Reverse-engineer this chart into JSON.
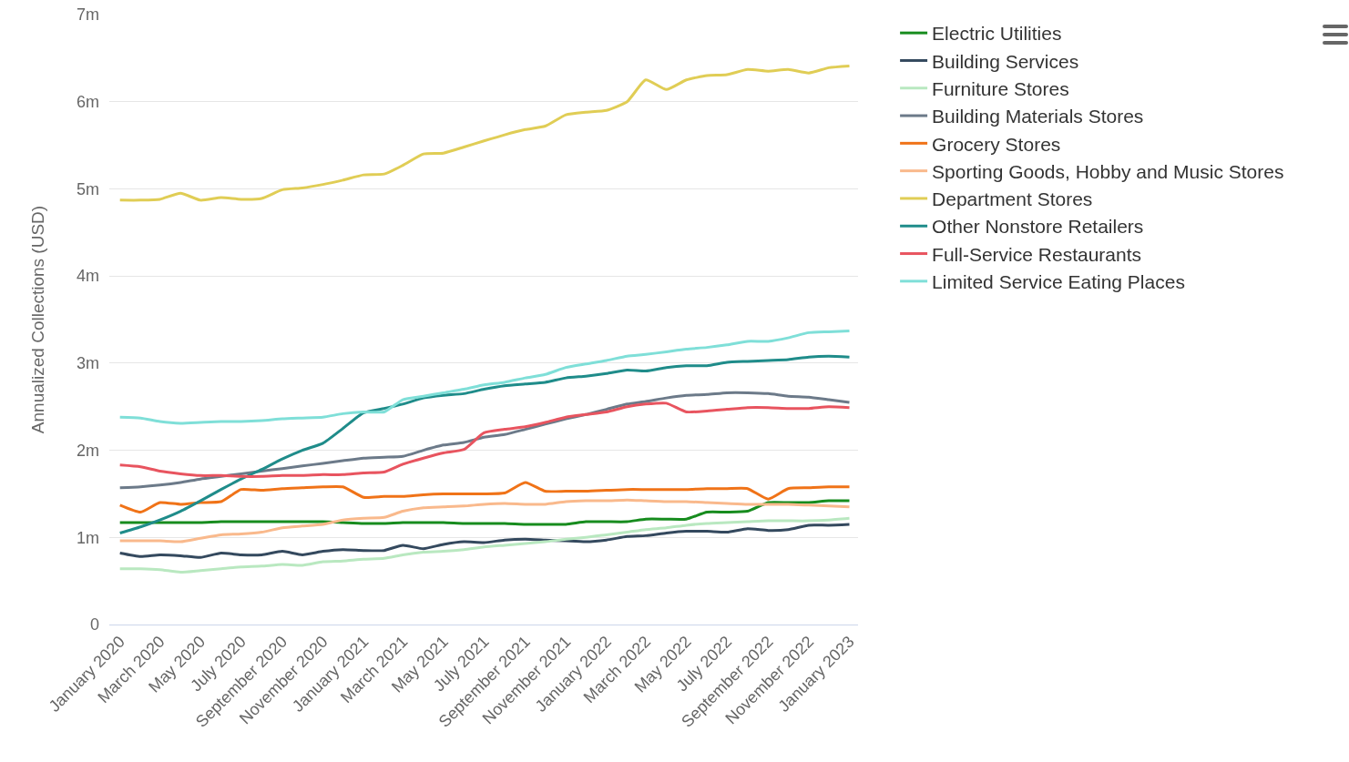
{
  "chart_data": {
    "type": "line",
    "ylabel": "Annualized Collections (USD)",
    "x": [
      "2020-01",
      "2020-02",
      "2020-03",
      "2020-04",
      "2020-05",
      "2020-06",
      "2020-07",
      "2020-08",
      "2020-09",
      "2020-10",
      "2020-11",
      "2020-12",
      "2021-01",
      "2021-02",
      "2021-03",
      "2021-04",
      "2021-05",
      "2021-06",
      "2021-07",
      "2021-08",
      "2021-09",
      "2021-10",
      "2021-11",
      "2021-12",
      "2022-01",
      "2022-02",
      "2022-03",
      "2022-04",
      "2022-05",
      "2022-06",
      "2022-07",
      "2022-08",
      "2022-09",
      "2022-10",
      "2022-11",
      "2022-12",
      "2023-01"
    ],
    "xlim": [
      "2019-12-16",
      "2023-01-14"
    ],
    "xticks": [
      {
        "value": "2020-01",
        "label": "January 2020"
      },
      {
        "value": "2020-03",
        "label": "March 2020"
      },
      {
        "value": "2020-05",
        "label": "May 2020"
      },
      {
        "value": "2020-07",
        "label": "July 2020"
      },
      {
        "value": "2020-09",
        "label": "September 2020"
      },
      {
        "value": "2020-11",
        "label": "November 2020"
      },
      {
        "value": "2021-01",
        "label": "January 2021"
      },
      {
        "value": "2021-03",
        "label": "March 2021"
      },
      {
        "value": "2021-05",
        "label": "May 2021"
      },
      {
        "value": "2021-07",
        "label": "July 2021"
      },
      {
        "value": "2021-09",
        "label": "September 2021"
      },
      {
        "value": "2021-11",
        "label": "November 2021"
      },
      {
        "value": "2022-01",
        "label": "January 2022"
      },
      {
        "value": "2022-03",
        "label": "March 2022"
      },
      {
        "value": "2022-05",
        "label": "May 2022"
      },
      {
        "value": "2022-07",
        "label": "July 2022"
      },
      {
        "value": "2022-09",
        "label": "September 2022"
      },
      {
        "value": "2022-11",
        "label": "November 2022"
      },
      {
        "value": "2023-01",
        "label": "January 2023"
      }
    ],
    "ylim": [
      0,
      7000000
    ],
    "yticks": [
      0,
      {
        "value": 1000000,
        "label": "1m"
      },
      {
        "value": 2000000,
        "label": "2m"
      },
      {
        "value": 3000000,
        "label": "3m"
      },
      {
        "value": 4000000,
        "label": "4m"
      },
      {
        "value": 5000000,
        "label": "5m"
      },
      {
        "value": 6000000,
        "label": "6m"
      },
      {
        "value": 7000000,
        "label": "7m"
      }
    ],
    "grid": "y",
    "legend": "top right",
    "marker": "none",
    "line_style": "solid",
    "series": [
      {
        "name": "Electric Utilities",
        "color": "#178c1e",
        "values": [
          1170000,
          1170000,
          1170000,
          1170000,
          1170000,
          1180000,
          1180000,
          1180000,
          1180000,
          1180000,
          1180000,
          1170000,
          1160000,
          1160000,
          1170000,
          1170000,
          1170000,
          1160000,
          1160000,
          1160000,
          1150000,
          1150000,
          1150000,
          1180000,
          1180000,
          1180000,
          1210000,
          1210000,
          1210000,
          1290000,
          1290000,
          1300000,
          1400000,
          1400000,
          1400000,
          1420000,
          1420000
        ]
      },
      {
        "name": "Building Services",
        "color": "#34495e",
        "values": [
          820000,
          780000,
          800000,
          790000,
          770000,
          820000,
          800000,
          800000,
          840000,
          800000,
          840000,
          860000,
          850000,
          850000,
          910000,
          870000,
          920000,
          950000,
          940000,
          970000,
          980000,
          970000,
          960000,
          950000,
          970000,
          1010000,
          1020000,
          1050000,
          1070000,
          1070000,
          1060000,
          1100000,
          1080000,
          1090000,
          1140000,
          1140000,
          1150000
        ]
      },
      {
        "name": "Furniture Stores",
        "color": "#b9e8c0",
        "values": [
          640000,
          640000,
          630000,
          600000,
          620000,
          640000,
          660000,
          670000,
          690000,
          680000,
          720000,
          730000,
          750000,
          760000,
          800000,
          830000,
          840000,
          860000,
          890000,
          910000,
          930000,
          950000,
          980000,
          1000000,
          1030000,
          1060000,
          1090000,
          1110000,
          1140000,
          1160000,
          1170000,
          1180000,
          1190000,
          1190000,
          1190000,
          1200000,
          1220000
        ]
      },
      {
        "name": "Building Materials Stores",
        "color": "#6c7a89",
        "values": [
          1570000,
          1580000,
          1600000,
          1630000,
          1670000,
          1700000,
          1730000,
          1760000,
          1790000,
          1820000,
          1850000,
          1880000,
          1910000,
          1920000,
          1930000,
          2000000,
          2060000,
          2090000,
          2150000,
          2180000,
          2240000,
          2300000,
          2360000,
          2410000,
          2470000,
          2530000,
          2560000,
          2600000,
          2630000,
          2640000,
          2660000,
          2660000,
          2650000,
          2620000,
          2610000,
          2580000,
          2550000
        ]
      },
      {
        "name": "Grocery Stores",
        "color": "#f07318",
        "values": [
          1370000,
          1290000,
          1400000,
          1380000,
          1400000,
          1410000,
          1550000,
          1540000,
          1560000,
          1570000,
          1580000,
          1580000,
          1460000,
          1470000,
          1470000,
          1490000,
          1500000,
          1500000,
          1500000,
          1510000,
          1630000,
          1530000,
          1530000,
          1530000,
          1540000,
          1550000,
          1550000,
          1550000,
          1550000,
          1560000,
          1560000,
          1560000,
          1440000,
          1560000,
          1570000,
          1580000,
          1580000
        ]
      },
      {
        "name": "Sporting Goods, Hobby and Music Stores",
        "color": "#f9b98c",
        "values": [
          960000,
          960000,
          960000,
          950000,
          990000,
          1030000,
          1040000,
          1060000,
          1110000,
          1130000,
          1150000,
          1200000,
          1220000,
          1230000,
          1300000,
          1340000,
          1350000,
          1360000,
          1380000,
          1390000,
          1380000,
          1380000,
          1410000,
          1420000,
          1420000,
          1430000,
          1420000,
          1410000,
          1410000,
          1400000,
          1390000,
          1380000,
          1380000,
          1380000,
          1370000,
          1360000,
          1350000
        ]
      },
      {
        "name": "Department Stores",
        "color": "#e0cd55",
        "values": [
          4870000,
          4870000,
          4880000,
          4950000,
          4870000,
          4900000,
          4880000,
          4890000,
          4990000,
          5010000,
          5050000,
          5100000,
          5160000,
          5170000,
          5270000,
          5400000,
          5410000,
          5480000,
          5550000,
          5620000,
          5680000,
          5720000,
          5850000,
          5880000,
          5900000,
          6000000,
          6250000,
          6140000,
          6250000,
          6300000,
          6310000,
          6370000,
          6350000,
          6370000,
          6330000,
          6390000,
          6410000
        ]
      },
      {
        "name": "Other Nonstore Retailers",
        "color": "#1f8c8a",
        "values": [
          1050000,
          1120000,
          1200000,
          1300000,
          1420000,
          1550000,
          1670000,
          1780000,
          1900000,
          2000000,
          2080000,
          2250000,
          2430000,
          2480000,
          2530000,
          2600000,
          2630000,
          2650000,
          2700000,
          2740000,
          2760000,
          2780000,
          2830000,
          2850000,
          2880000,
          2920000,
          2910000,
          2950000,
          2970000,
          2970000,
          3010000,
          3020000,
          3030000,
          3040000,
          3070000,
          3080000,
          3070000
        ]
      },
      {
        "name": "Full-Service Restaurants",
        "color": "#e8545f",
        "values": [
          1830000,
          1810000,
          1760000,
          1730000,
          1710000,
          1710000,
          1700000,
          1700000,
          1710000,
          1710000,
          1720000,
          1720000,
          1740000,
          1750000,
          1840000,
          1910000,
          1970000,
          2010000,
          2200000,
          2240000,
          2270000,
          2320000,
          2380000,
          2410000,
          2440000,
          2500000,
          2530000,
          2540000,
          2440000,
          2450000,
          2470000,
          2490000,
          2490000,
          2480000,
          2480000,
          2500000,
          2490000
        ]
      },
      {
        "name": "Limited Service Eating Places",
        "color": "#7fdfd8",
        "values": [
          2380000,
          2370000,
          2330000,
          2310000,
          2320000,
          2330000,
          2330000,
          2340000,
          2360000,
          2370000,
          2380000,
          2420000,
          2440000,
          2440000,
          2580000,
          2620000,
          2660000,
          2700000,
          2750000,
          2780000,
          2830000,
          2870000,
          2950000,
          2990000,
          3030000,
          3080000,
          3100000,
          3130000,
          3160000,
          3180000,
          3210000,
          3250000,
          3250000,
          3290000,
          3350000,
          3360000,
          3370000
        ]
      }
    ]
  }
}
